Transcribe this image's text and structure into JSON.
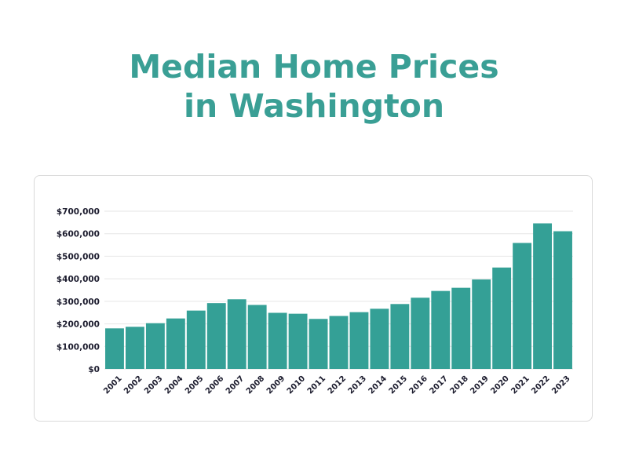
{
  "title": {
    "line1": "Median Home Prices",
    "line2": "in Washington"
  },
  "colors": {
    "title": "#3a9f95",
    "bar": "#34a096",
    "grid": "#e6e6e6",
    "tick_text": "#1c1c2e"
  },
  "chart_data": {
    "type": "bar",
    "title": "Median Home Prices in Washington",
    "xlabel": "",
    "ylabel": "",
    "grid": true,
    "legend": "none",
    "ylim": [
      0,
      700000
    ],
    "yticks": [
      0,
      100000,
      200000,
      300000,
      400000,
      500000,
      600000,
      700000
    ],
    "ytick_labels": [
      "$0",
      "$100,000",
      "$200,000",
      "$300,000",
      "$400,000",
      "$500,000",
      "$600,000",
      "$700,000"
    ],
    "categories": [
      "2001",
      "2002",
      "2003",
      "2004",
      "2005",
      "2006",
      "2007",
      "2008",
      "2009",
      "2010",
      "2011",
      "2012",
      "2013",
      "2014",
      "2015",
      "2016",
      "2017",
      "2018",
      "2019",
      "2020",
      "2021",
      "2022",
      "2023"
    ],
    "values": [
      180000,
      187000,
      203000,
      224000,
      259000,
      292000,
      309000,
      284000,
      249000,
      245000,
      222000,
      235000,
      252000,
      267000,
      288000,
      316000,
      346000,
      360000,
      397000,
      450000,
      559000,
      646000,
      611000
    ]
  }
}
